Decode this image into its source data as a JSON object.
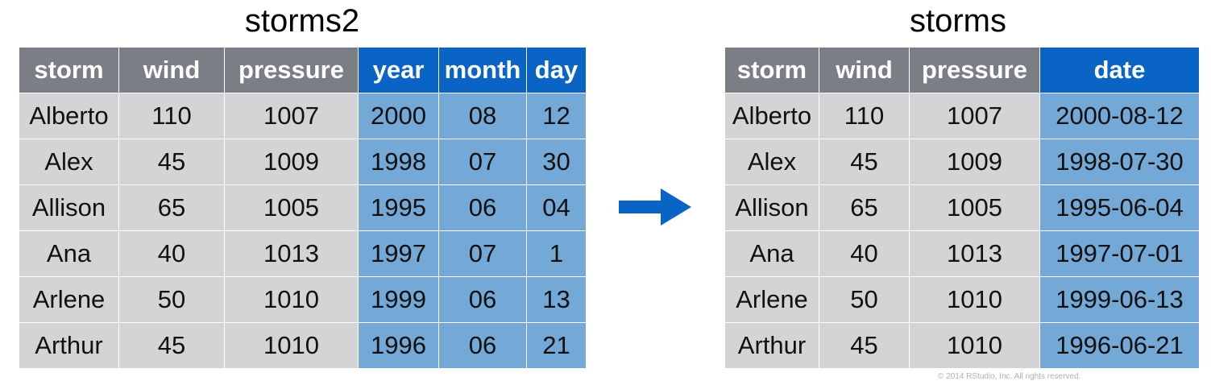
{
  "left_table": {
    "title": "storms2",
    "columns": [
      "storm",
      "wind",
      "pressure",
      "year",
      "month",
      "day"
    ],
    "rows": [
      [
        "Alberto",
        "110",
        "1007",
        "2000",
        "08",
        "12"
      ],
      [
        "Alex",
        "45",
        "1009",
        "1998",
        "07",
        "30"
      ],
      [
        "Allison",
        "65",
        "1005",
        "1995",
        "06",
        "04"
      ],
      [
        "Ana",
        "40",
        "1013",
        "1997",
        "07",
        "1"
      ],
      [
        "Arlene",
        "50",
        "1010",
        "1999",
        "06",
        "13"
      ],
      [
        "Arthur",
        "45",
        "1010",
        "1996",
        "06",
        "21"
      ]
    ]
  },
  "right_table": {
    "title": "storms",
    "columns": [
      "storm",
      "wind",
      "pressure",
      "date"
    ],
    "rows": [
      [
        "Alberto",
        "110",
        "1007",
        "2000-08-12"
      ],
      [
        "Alex",
        "45",
        "1009",
        "1998-07-30"
      ],
      [
        "Allison",
        "65",
        "1005",
        "1995-06-04"
      ],
      [
        "Ana",
        "40",
        "1013",
        "1997-07-01"
      ],
      [
        "Arlene",
        "50",
        "1010",
        "1999-06-13"
      ],
      [
        "Arthur",
        "45",
        "1010",
        "1996-06-21"
      ]
    ]
  },
  "arrow_icon": "right-arrow-icon",
  "copyright": "© 2014 RStudio, Inc. All rights reserved.",
  "colors": {
    "header_grey": "#7b7e84",
    "header_blue": "#0a64c6",
    "cell_grey": "#d4d4d6",
    "cell_blue": "#74a8d6",
    "arrow_blue": "#0a64c6"
  }
}
